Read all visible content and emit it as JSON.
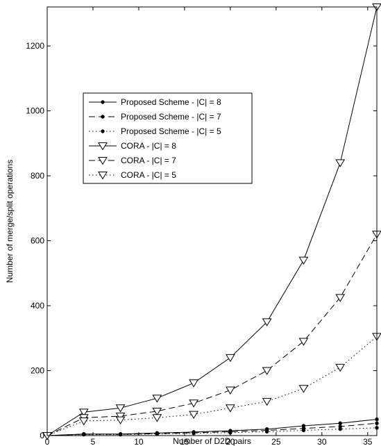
{
  "chart_data": {
    "type": "line",
    "xlabel": "Number of D2D pairs",
    "ylabel": "Number of merge/split operations",
    "xlim": [
      0,
      36
    ],
    "ylim": [
      0,
      1320
    ],
    "xticks": [
      0,
      5,
      10,
      15,
      20,
      25,
      30,
      35
    ],
    "yticks": [
      0,
      200,
      400,
      600,
      800,
      1000,
      1200
    ],
    "grid": false,
    "legend_position": "upper-left",
    "x": [
      0,
      4,
      8,
      12,
      16,
      20,
      24,
      28,
      32,
      36
    ],
    "series": [
      {
        "name": "Proposed Scheme - |C| = 8",
        "linestyle": "solid",
        "marker": "dot",
        "values": [
          0,
          5,
          5,
          8,
          11,
          15,
          20,
          30,
          38,
          50
        ]
      },
      {
        "name": "Proposed Scheme - |C| = 7",
        "linestyle": "dashed",
        "marker": "dot",
        "values": [
          0,
          4,
          4,
          6,
          9,
          12,
          16,
          22,
          28,
          38
        ]
      },
      {
        "name": "Proposed Scheme - |C| = 5",
        "linestyle": "dotted",
        "marker": "dot",
        "values": [
          0,
          3,
          3,
          5,
          7,
          9,
          12,
          16,
          20,
          24
        ]
      },
      {
        "name": "CORA - |C| = 8",
        "linestyle": "solid",
        "marker": "triangle-down",
        "values": [
          0,
          72,
          85,
          115,
          162,
          240,
          350,
          540,
          840,
          1320
        ]
      },
      {
        "name": "CORA - |C| = 7",
        "linestyle": "dashed",
        "marker": "triangle-down",
        "values": [
          0,
          55,
          60,
          75,
          100,
          140,
          200,
          290,
          425,
          620
        ]
      },
      {
        "name": "CORA - |C| = 5",
        "linestyle": "dotted",
        "marker": "triangle-down",
        "values": [
          0,
          45,
          48,
          55,
          65,
          85,
          105,
          145,
          210,
          305
        ]
      }
    ]
  }
}
